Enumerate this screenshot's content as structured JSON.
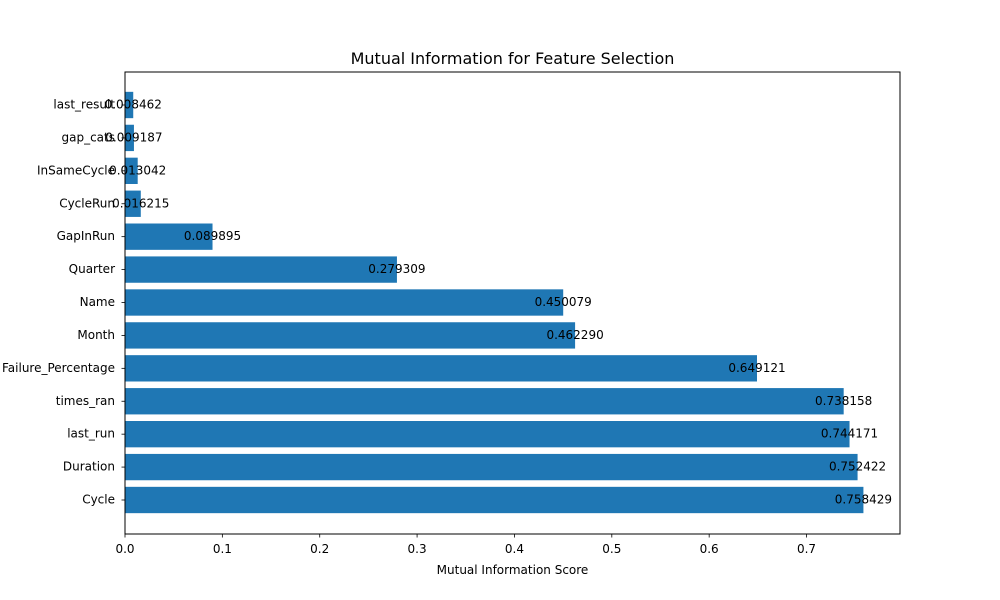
{
  "chart_data": {
    "type": "bar",
    "orientation": "horizontal",
    "title": "Mutual Information for Feature Selection",
    "xlabel": "Mutual Information Score",
    "ylabel": "",
    "xlim": [
      0,
      0.796
    ],
    "xticks": [
      "0.0",
      "0.1",
      "0.2",
      "0.3",
      "0.4",
      "0.5",
      "0.6",
      "0.7"
    ],
    "bar_color": "#1f77b4",
    "grid": false,
    "categories": [
      "Cycle",
      "Duration",
      "last_run",
      "times_ran",
      "Failure_Percentage",
      "Month",
      "Name",
      "Quarter",
      "GapInRun",
      "CycleRun",
      "InSameCycle",
      "gap_cats",
      "last_result"
    ],
    "values": [
      0.758429,
      0.752422,
      0.744171,
      0.738158,
      0.649121,
      0.46229,
      0.450079,
      0.279309,
      0.089895,
      0.016215,
      0.013042,
      0.009187,
      0.008462
    ],
    "data_labels": [
      "0.758429",
      "0.752422",
      "0.744171",
      "0.738158",
      "0.649121",
      "0.462290",
      "0.450079",
      "0.279309",
      "0.089895",
      "0.016215",
      "0.013042",
      "0.009187",
      "0.008462"
    ]
  }
}
